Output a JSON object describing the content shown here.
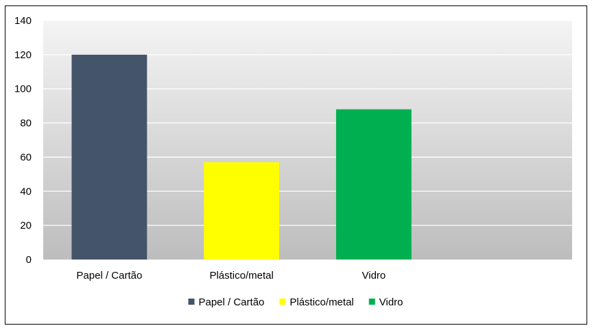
{
  "chart_data": {
    "type": "bar",
    "title": "",
    "xlabel": "",
    "ylabel": "",
    "categories": [
      "Papel / Cartão",
      "Plástico/metal",
      "Vidro"
    ],
    "series": [
      {
        "name": "Papel / Cartão",
        "category": "Papel / Cartão",
        "value": 120,
        "color": "#44546a"
      },
      {
        "name": "Plástico/metal",
        "category": "Plástico/metal",
        "value": 57,
        "color": "#ffff00"
      },
      {
        "name": "Vidro",
        "category": "Vidro",
        "value": 88,
        "color": "#00b050"
      }
    ],
    "slots": 4,
    "ylim": [
      0,
      140
    ],
    "yticks": [
      0,
      20,
      40,
      60,
      80,
      100,
      120,
      140
    ],
    "grid": true,
    "legend_position": "bottom",
    "plot_background": "gradient-light-grey"
  }
}
